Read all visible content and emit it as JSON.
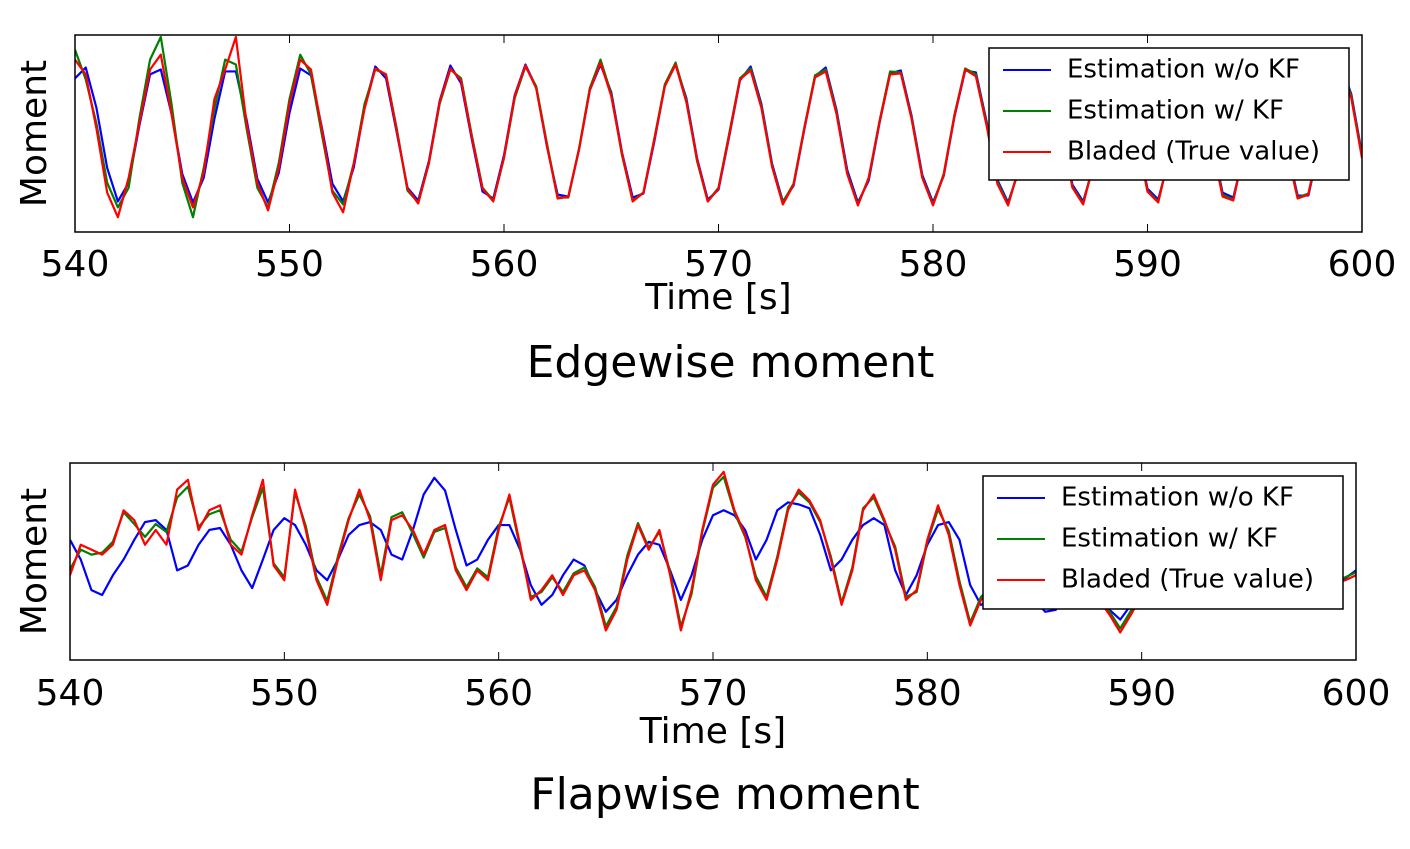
{
  "chart_data": [
    {
      "type": "line",
      "title": "Edgewise moment",
      "xlabel": "Time [s]",
      "ylabel": "Moment",
      "xlim": [
        540,
        600
      ],
      "xticks": [
        540,
        550,
        560,
        570,
        580,
        590,
        600
      ],
      "ylim": [
        -10,
        10
      ],
      "legend": "upper right",
      "x": [
        540,
        540.5,
        541,
        541.5,
        542,
        542.5,
        543,
        543.5,
        544,
        544.5,
        545,
        545.5,
        546,
        546.5,
        547,
        547.5,
        548,
        548.5,
        549,
        549.5,
        550,
        550.5,
        551,
        551.5,
        552,
        552.5,
        553,
        553.5,
        554,
        554.5,
        555,
        555.5,
        556,
        556.5,
        557,
        557.5,
        558,
        558.5,
        559,
        559.5,
        560,
        560.5,
        561,
        561.5,
        562,
        562.5,
        563,
        563.5,
        564,
        564.5,
        565,
        565.5,
        566,
        566.5,
        567,
        567.5,
        568,
        568.5,
        569,
        569.5,
        570,
        570.5,
        571,
        571.5,
        572,
        572.5,
        573,
        573.5,
        574,
        574.5,
        575,
        575.5,
        576,
        576.5,
        577,
        577.5,
        578,
        578.5,
        579,
        579.5,
        580,
        580.5,
        581,
        581.5,
        582,
        582.5,
        583,
        583.5,
        584,
        584.5,
        585,
        585.5,
        586,
        586.5,
        587,
        587.5,
        588,
        588.5,
        589,
        589.5,
        590,
        590.5,
        591,
        591.5,
        592,
        592.5,
        593,
        593.5,
        594,
        594.5,
        595,
        595.5,
        596,
        596.5,
        597,
        597.5,
        598,
        598.5,
        599,
        599.5,
        600
      ],
      "series": [
        {
          "name": "Estimation w/o KF",
          "color": "#0000ff",
          "values": [
            5.6,
            6.7,
            2.6,
            -3.5,
            -6.9,
            -5.0,
            0.8,
            6.0,
            6.5,
            2.0,
            -4.1,
            -7.0,
            -4.5,
            1.5,
            6.3,
            6.3,
            1.4,
            -4.6,
            -7.0,
            -4.0,
            2.1,
            6.6,
            5.9,
            0.7,
            -5.1,
            -6.9,
            -3.4,
            2.7,
            6.8,
            5.6,
            0.1,
            -5.5,
            -6.8,
            -2.8,
            3.3,
            6.9,
            5.1,
            -0.6,
            -5.9,
            -6.6,
            -2.2,
            3.9,
            7.0,
            4.7,
            -1.3,
            -6.2,
            -6.4,
            -1.6,
            4.4,
            7.0,
            4.2,
            -1.9,
            -6.5,
            -6.1,
            -0.9,
            4.9,
            7.0,
            3.6,
            -2.5,
            -6.7,
            -5.7,
            -0.3,
            5.4,
            6.8,
            3.0,
            -3.1,
            -6.9,
            -5.3,
            0.4,
            5.8,
            6.7,
            2.4,
            -3.7,
            -7.0,
            -4.8,
            1.0,
            6.1,
            6.4,
            1.8,
            -4.2,
            -7.0,
            -4.3,
            1.7,
            6.4,
            6.2,
            1.2,
            -4.7,
            -7.0,
            -3.8,
            2.3,
            6.6,
            5.8,
            0.5,
            -5.2,
            -6.9,
            -3.2,
            2.9,
            6.8,
            5.4,
            -0.2,
            -5.6,
            -6.7,
            -2.6,
            3.5,
            6.9,
            5.0,
            -0.8,
            -6.0,
            -6.5,
            -2.0,
            4.1,
            7.0,
            4.5,
            -1.5,
            -6.3,
            -6.3,
            -1.4,
            4.6,
            7.0,
            4.0,
            -2.1
          ]
        },
        {
          "name": "Estimation w/ KF",
          "color": "#008000",
          "values": [
            8.5,
            5.5,
            1.0,
            -5.0,
            -7.5,
            -5.5,
            1.5,
            7.5,
            9.8,
            3.0,
            -5.0,
            -8.5,
            -3.5,
            2.5,
            7.5,
            7.0,
            0.5,
            -5.5,
            -7.5,
            -3.0,
            3.5,
            8.0,
            6.0,
            0.0,
            -5.8,
            -7.2,
            -3.0,
            3.0,
            6.5,
            6.0,
            0.5,
            -5.8,
            -7.0,
            -3.0,
            3.0,
            6.5,
            5.6,
            -0.2,
            -5.5,
            -6.8,
            -2.5,
            3.6,
            6.8,
            4.8,
            -1.0,
            -6.5,
            -6.5,
            -1.5,
            4.6,
            7.5,
            4.0,
            -2.2,
            -6.8,
            -6.0,
            -0.6,
            5.0,
            7.2,
            3.4,
            -2.8,
            -6.9,
            -5.5,
            0.0,
            5.6,
            6.6,
            2.8,
            -3.3,
            -7.0,
            -5.1,
            0.6,
            5.9,
            6.5,
            2.2,
            -4.0,
            -7.2,
            -4.6,
            1.2,
            6.3,
            6.2,
            1.6,
            -4.4,
            -7.2,
            -4.1,
            1.9,
            6.6,
            6.0,
            1.0,
            -4.9,
            -7.2,
            -3.6,
            2.5,
            6.5,
            5.6,
            0.3,
            -5.4,
            -7.1,
            -3.0,
            3.1,
            6.7,
            5.2,
            -0.4,
            -5.8,
            -6.9,
            -2.4,
            3.7,
            6.8,
            4.8,
            -1.0,
            -6.2,
            -6.7,
            -1.8,
            4.3,
            6.9,
            4.3,
            -1.7,
            -6.5,
            -6.1,
            -1.2,
            4.8,
            6.9,
            3.8,
            -2.3
          ]
        },
        {
          "name": "Bladed (True value)",
          "color": "#ff0000",
          "values": [
            7.5,
            6.0,
            0.5,
            -6.0,
            -8.5,
            -4.5,
            1.0,
            6.5,
            8.0,
            2.0,
            -4.5,
            -7.5,
            -4.0,
            3.5,
            6.5,
            9.8,
            1.0,
            -5.0,
            -7.8,
            -3.5,
            3.0,
            7.5,
            6.5,
            0.5,
            -6.0,
            -8.0,
            -3.0,
            2.5,
            6.6,
            6.0,
            0.3,
            -5.6,
            -7.1,
            -3.0,
            3.2,
            6.6,
            5.4,
            -0.4,
            -5.6,
            -6.9,
            -2.4,
            3.8,
            6.9,
            4.6,
            -1.2,
            -6.6,
            -6.4,
            -1.6,
            4.4,
            7.2,
            3.8,
            -2.0,
            -6.9,
            -6.0,
            -0.7,
            4.8,
            7.0,
            3.2,
            -2.6,
            -6.9,
            -5.6,
            -0.2,
            5.5,
            6.4,
            2.6,
            -3.4,
            -7.2,
            -5.2,
            0.5,
            5.7,
            6.3,
            2.0,
            -4.1,
            -7.3,
            -4.5,
            1.1,
            6.0,
            6.1,
            1.5,
            -4.5,
            -7.3,
            -4.2,
            1.8,
            6.5,
            5.8,
            0.8,
            -5.1,
            -7.3,
            -3.5,
            2.4,
            6.4,
            5.4,
            0.2,
            -5.5,
            -7.2,
            -2.9,
            3.0,
            6.5,
            5.0,
            -0.5,
            -5.9,
            -7.0,
            -2.3,
            3.6,
            6.6,
            4.6,
            -1.1,
            -6.4,
            -6.8,
            -1.7,
            4.2,
            6.7,
            4.1,
            -1.8,
            -6.6,
            -6.2,
            -1.1,
            4.6,
            6.8,
            3.6,
            -2.5
          ]
        }
      ]
    },
    {
      "type": "line",
      "title": "Flapwise moment",
      "xlabel": "Time [s]",
      "ylabel": "Moment",
      "xlim": [
        540,
        600
      ],
      "xticks": [
        540,
        550,
        560,
        570,
        580,
        590,
        600
      ],
      "ylim": [
        -10,
        10
      ],
      "legend": "upper right",
      "x": [
        540,
        540.5,
        541,
        541.5,
        542,
        542.5,
        543,
        543.5,
        544,
        544.5,
        545,
        545.5,
        546,
        546.5,
        547,
        547.5,
        548,
        548.5,
        549,
        549.5,
        550,
        550.5,
        551,
        551.5,
        552,
        552.5,
        553,
        553.5,
        554,
        554.5,
        555,
        555.5,
        556,
        556.5,
        557,
        557.5,
        558,
        558.5,
        559,
        559.5,
        560,
        560.5,
        561,
        561.5,
        562,
        562.5,
        563,
        563.5,
        564,
        564.5,
        565,
        565.5,
        566,
        566.5,
        567,
        567.5,
        568,
        568.5,
        569,
        569.5,
        570,
        570.5,
        571,
        571.5,
        572,
        572.5,
        573,
        573.5,
        574,
        574.5,
        575,
        575.5,
        576,
        576.5,
        577,
        577.5,
        578,
        578.5,
        579,
        579.5,
        580,
        580.5,
        581,
        581.5,
        582,
        582.5,
        583,
        583.5,
        584,
        584.5,
        585,
        585.5,
        586,
        586.5,
        587,
        587.5,
        588,
        588.5,
        589,
        589.5,
        590,
        590.5,
        591,
        591.5,
        592,
        592.5,
        593,
        593.5,
        594,
        594.5,
        595,
        595.5,
        596,
        596.5,
        597,
        597.5,
        598,
        598.5,
        599,
        599.5,
        600
      ],
      "series": [
        {
          "name": "Estimation w/o KF",
          "color": "#0000ff",
          "values": [
            2.2,
            0.2,
            -2.9,
            -3.4,
            -1.4,
            0.2,
            2.2,
            4.0,
            4.2,
            3.2,
            -0.9,
            -0.4,
            1.7,
            3.2,
            3.4,
            1.7,
            -0.9,
            -2.7,
            0.2,
            3.2,
            4.4,
            3.7,
            1.7,
            -0.9,
            -1.9,
            0.2,
            2.7,
            3.7,
            4.0,
            3.2,
            0.7,
            0.2,
            3.2,
            6.8,
            8.5,
            7.2,
            3.2,
            -0.4,
            0.2,
            2.2,
            3.7,
            3.7,
            1.2,
            -2.4,
            -4.4,
            -3.4,
            -1.4,
            0.2,
            -0.4,
            -2.9,
            -5.1,
            -3.9,
            -1.4,
            0.7,
            2.0,
            1.7,
            -0.9,
            -3.9,
            -1.4,
            2.2,
            4.7,
            5.2,
            4.7,
            3.2,
            0.2,
            2.2,
            5.2,
            6.0,
            5.8,
            5.4,
            2.7,
            -0.9,
            0.2,
            2.2,
            3.7,
            4.4,
            3.7,
            -0.9,
            -3.4,
            -1.4,
            1.7,
            3.7,
            4.0,
            2.2,
            -2.4,
            -4.4,
            -3.9,
            -2.4,
            -1.9,
            -2.9,
            -3.9,
            -5.1,
            -4.9,
            -3.4,
            -2.4,
            -2.9,
            -3.9,
            -4.9,
            -5.9,
            -4.4,
            -2.9,
            -1.9,
            -1.4,
            -1.9,
            -2.9,
            -3.7,
            -3.9,
            -3.4,
            -2.9,
            -2.4,
            -2.1,
            -2.4,
            -2.9,
            -3.4,
            -3.1,
            -2.7,
            -2.4,
            -2.2,
            -2.1,
            -1.7,
            -0.9
          ]
        },
        {
          "name": "Estimation w/ KF",
          "color": "#008000",
          "values": [
            -0.8,
            1.2,
            0.7,
            0.9,
            2.0,
            5.0,
            3.8,
            2.5,
            3.8,
            3.0,
            6.5,
            7.6,
            3.5,
            4.8,
            5.2,
            2.2,
            1.0,
            4.5,
            7.5,
            -0.2,
            -1.6,
            7.0,
            3.6,
            -1.6,
            -4.0,
            0.5,
            4.4,
            6.8,
            4.6,
            -1.4,
            4.5,
            5.0,
            2.8,
            0.4,
            3.0,
            3.4,
            -0.6,
            -2.6,
            -0.7,
            -1.6,
            3.5,
            6.5,
            1.4,
            -3.6,
            -3.1,
            -1.6,
            -3.1,
            -1.2,
            -0.6,
            -2.6,
            -6.6,
            -4.6,
            0.6,
            3.9,
            1.4,
            3.0,
            -1.1,
            -6.6,
            -3.3,
            3.0,
            7.5,
            8.6,
            5.0,
            2.5,
            -1.5,
            -3.6,
            0.5,
            5.5,
            7.0,
            6.0,
            4.0,
            0.5,
            -4.2,
            -0.6,
            5.4,
            6.5,
            4.0,
            1.5,
            -3.6,
            -3.1,
            2.0,
            5.3,
            3.1,
            -2.0,
            -6.2,
            -3.6,
            -2.6,
            -1.6,
            -2.1,
            -3.6,
            -3.1,
            -2.6,
            -3.4,
            -4.1,
            -3.6,
            -3.1,
            -3.6,
            -5.1,
            -6.8,
            -5.0,
            -3.1,
            -2.1,
            -2.6,
            -3.1,
            -2.6,
            -2.1,
            -2.6,
            -3.1,
            -2.6,
            -2.1,
            -1.6,
            -2.1,
            -2.6,
            -2.1,
            -1.6,
            -2.1,
            -2.4,
            -2.0,
            -1.9,
            -1.6,
            -1.1
          ]
        },
        {
          "name": "Bladed (True value)",
          "color": "#ff0000",
          "values": [
            -1.4,
            1.7,
            1.2,
            0.7,
            1.7,
            5.2,
            4.2,
            1.7,
            3.2,
            1.7,
            7.3,
            8.3,
            3.2,
            5.2,
            5.7,
            1.7,
            0.7,
            4.7,
            8.3,
            -0.4,
            -1.9,
            7.3,
            3.2,
            -1.9,
            -4.4,
            0.2,
            4.2,
            7.3,
            4.2,
            -1.9,
            4.2,
            4.7,
            3.2,
            0.7,
            3.2,
            3.7,
            -0.9,
            -2.9,
            -0.9,
            -1.9,
            3.2,
            6.8,
            1.7,
            -3.9,
            -2.9,
            -1.4,
            -3.4,
            -1.4,
            -0.9,
            -2.9,
            -7.0,
            -4.9,
            0.2,
            3.7,
            1.2,
            3.2,
            -1.4,
            -7.0,
            -2.9,
            3.2,
            7.8,
            9.1,
            5.2,
            2.7,
            -1.9,
            -3.9,
            0.2,
            5.2,
            7.3,
            6.2,
            4.2,
            0.2,
            -4.4,
            -0.9,
            5.2,
            6.8,
            4.2,
            1.2,
            -3.9,
            -2.9,
            2.2,
            5.7,
            2.7,
            -2.4,
            -6.5,
            -3.9,
            -2.9,
            -1.9,
            -2.4,
            -3.9,
            -3.4,
            -2.9,
            -3.7,
            -4.4,
            -3.9,
            -3.4,
            -3.9,
            -5.4,
            -7.2,
            -5.4,
            -3.4,
            -2.4,
            -2.9,
            -3.4,
            -2.9,
            -2.4,
            -2.9,
            -3.4,
            -2.9,
            -2.4,
            -1.9,
            -2.4,
            -2.9,
            -2.4,
            -1.9,
            -2.4,
            -2.7,
            -2.3,
            -2.2,
            -1.9,
            -1.4
          ]
        }
      ]
    }
  ]
}
